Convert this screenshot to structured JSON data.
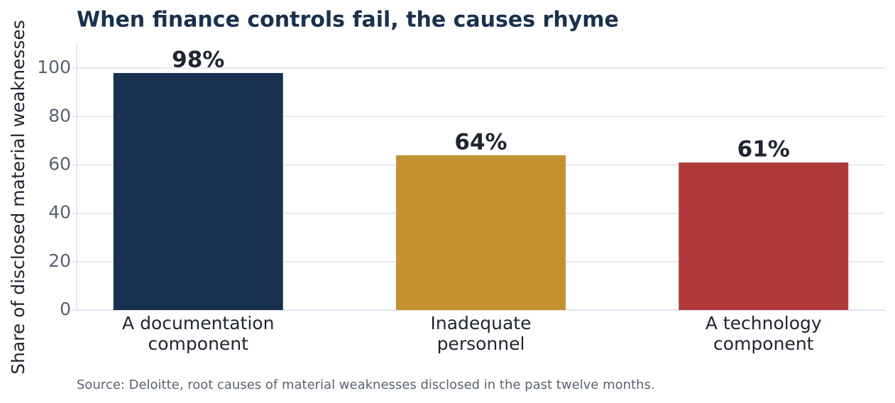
{
  "chart_data": {
    "type": "bar",
    "title": "When finance controls fail, the causes rhyme",
    "y_label": "Share of disclosed material weaknesses",
    "source": "Source: Deloitte, root causes of material weaknesses disclosed in the past twelve months.",
    "categories": [
      "A documentation\ncomponent",
      "Inadequate\npersonnel",
      "A technology\ncomponent"
    ],
    "values": [
      98,
      64,
      61
    ],
    "value_labels": [
      "98%",
      "64%",
      "61%"
    ],
    "colors": [
      "#18314f",
      "#c39230",
      "#b03a3a"
    ],
    "ylim": [
      0,
      110
    ],
    "yticks": [
      0,
      20,
      40,
      60,
      80,
      100
    ],
    "grid": true
  }
}
